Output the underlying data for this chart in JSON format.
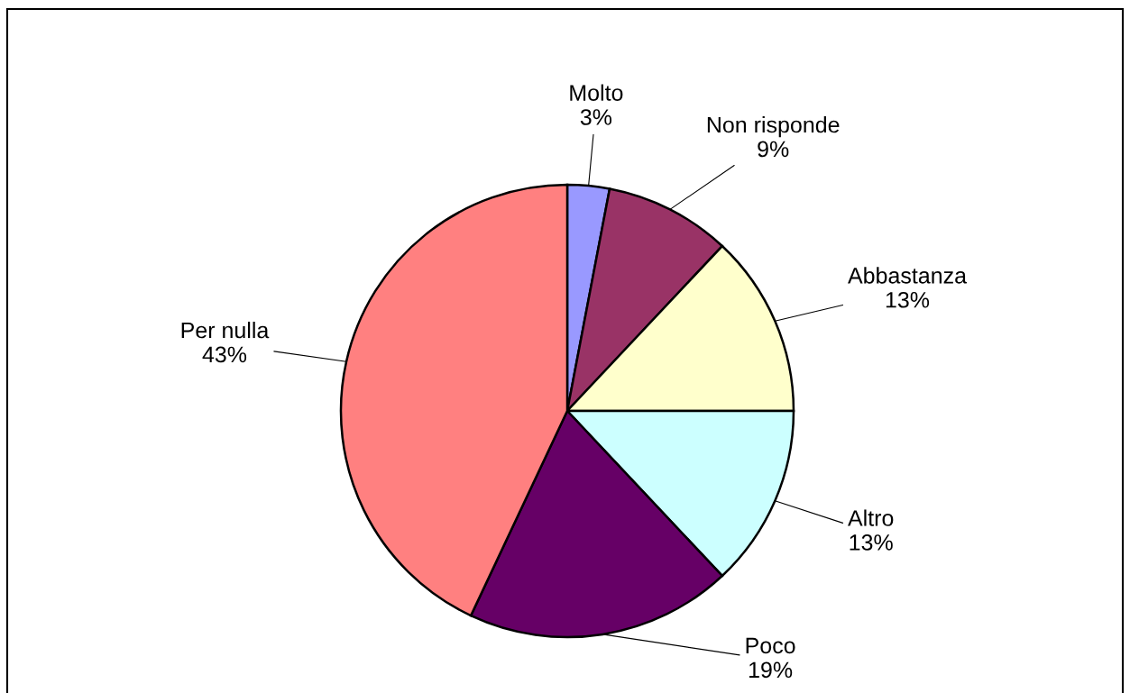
{
  "chart_data": {
    "type": "pie",
    "categories": [
      "Molto",
      "Non risponde",
      "Abbastanza",
      "Altro",
      "Poco",
      "Per nulla"
    ],
    "values": [
      3,
      9,
      13,
      13,
      19,
      43
    ],
    "colors": [
      "#9999ff",
      "#993366",
      "#ffffcc",
      "#ccffff",
      "#660066",
      "#ff8080"
    ],
    "value_labels": [
      "3%",
      "9%",
      "13%",
      "13%",
      "19%",
      "43%"
    ]
  }
}
